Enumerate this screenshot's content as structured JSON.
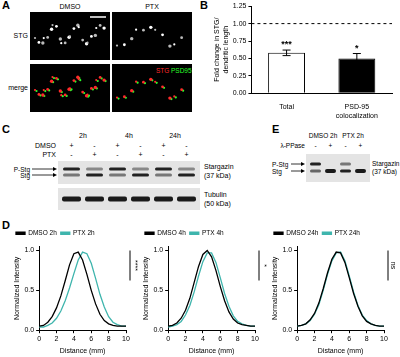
{
  "panel_labels": [
    "A",
    "B",
    "C",
    "D",
    "E"
  ],
  "panel_A": {
    "columns": [
      "DMSO",
      "PTX"
    ],
    "rows": [
      "STG",
      "merge"
    ],
    "merge_channels": [
      {
        "name": "STG",
        "color": "#ff2a2a"
      },
      {
        "name": "PSD95",
        "color": "#2aff2a"
      }
    ]
  },
  "panel_C": {
    "timepoints": [
      "2h",
      "4h",
      "24h"
    ],
    "row_labels": [
      "DMSO",
      "PTX"
    ],
    "signs": [
      [
        "+",
        "-",
        "+",
        "-",
        "+",
        "-"
      ],
      [
        "-",
        "+",
        "-",
        "+",
        "-",
        "+"
      ]
    ],
    "band_labels": [
      "P-Stg",
      "Stg"
    ],
    "blots": [
      {
        "label": [
          "Stargazin",
          "(37 kDa)"
        ]
      },
      {
        "label": [
          "Tubulin",
          "(50 kDa)"
        ]
      }
    ]
  },
  "panel_E": {
    "treatment_label": "λ-PPase",
    "groups": [
      "DMSO 2h",
      "PTX 2h"
    ],
    "signs": [
      "-",
      "+",
      "-",
      "+"
    ],
    "band_labels": [
      "P-Stg",
      "Stg"
    ],
    "blot_label": [
      "Stargazin",
      "(37 kDa)"
    ]
  },
  "chart_data": [
    {
      "type": "bar",
      "categories": [
        "Total",
        "PSD-95 colocalization"
      ],
      "values": [
        0.58,
        0.5
      ],
      "errors": [
        0.04,
        0.07
      ],
      "annotations": [
        "***",
        "*"
      ],
      "colors": [
        "#ffffff",
        "#000000"
      ],
      "y_label": [
        "Fold change in STG/",
        "dendritic length"
      ],
      "ylim": [
        0,
        1.25
      ],
      "yticks": [
        {
          "value": 0,
          "label": "0.00"
        },
        {
          "value": 0.25,
          "label": "0.25"
        },
        {
          "value": 0.5,
          "label": "0.50"
        },
        {
          "value": 0.75,
          "label": "0.75"
        },
        {
          "value": 1,
          "label": "1.00"
        },
        {
          "value": 1.25,
          "label": "1.25"
        }
      ],
      "reference_line": {
        "value": 1,
        "line_style": "dashed"
      },
      "grid": false
    },
    {
      "type": "line",
      "x": [
        0,
        0.5,
        1,
        1.5,
        2,
        2.5,
        3,
        3.5,
        4,
        4.5,
        5,
        5.5,
        6,
        6.5,
        7,
        7.5,
        8,
        8.5,
        9,
        9.5,
        10
      ],
      "series": [
        {
          "name": "DMSO 2h",
          "color": "#000000",
          "values": [
            0.05,
            0.06,
            0.1,
            0.17,
            0.28,
            0.43,
            0.62,
            0.82,
            0.96,
            0.98,
            0.88,
            0.7,
            0.5,
            0.33,
            0.2,
            0.12,
            0.08,
            0.06,
            0.05,
            0.05,
            0.05
          ]
        },
        {
          "name": "PTX 2h",
          "color": "#3fb5ad",
          "values": [
            0.04,
            0.04,
            0.06,
            0.09,
            0.15,
            0.24,
            0.37,
            0.53,
            0.71,
            0.88,
            0.98,
            0.96,
            0.84,
            0.65,
            0.45,
            0.29,
            0.17,
            0.1,
            0.07,
            0.05,
            0.05
          ]
        }
      ],
      "x_label": "Distance (mm)",
      "y_label": "Normalized Intensity",
      "xlim": [
        0,
        10
      ],
      "xticks": [
        0,
        2,
        4,
        6,
        8,
        10
      ],
      "ylim": [
        0,
        1.05
      ],
      "yticks": [
        {
          "value": 0,
          "label": "0.0"
        },
        {
          "value": 0.5,
          "label": "0.5"
        },
        {
          "value": 1,
          "label": "1.0"
        }
      ],
      "annotation": "****",
      "legend": "top",
      "grid": false
    },
    {
      "type": "line",
      "x": [
        0,
        0.5,
        1,
        1.5,
        2,
        2.5,
        3,
        3.5,
        4,
        4.5,
        5,
        5.5,
        6,
        6.5,
        7,
        7.5,
        8,
        8.5,
        9,
        9.5,
        10
      ],
      "series": [
        {
          "name": "DMSO 4h",
          "color": "#000000",
          "values": [
            0.05,
            0.06,
            0.09,
            0.15,
            0.25,
            0.4,
            0.6,
            0.8,
            0.95,
            1.0,
            0.92,
            0.75,
            0.55,
            0.37,
            0.23,
            0.14,
            0.09,
            0.07,
            0.06,
            0.05,
            0.05
          ]
        },
        {
          "name": "PTX 4h",
          "color": "#3fb5ad",
          "values": [
            0.04,
            0.05,
            0.07,
            0.11,
            0.19,
            0.31,
            0.48,
            0.68,
            0.86,
            0.97,
            0.97,
            0.85,
            0.66,
            0.46,
            0.3,
            0.18,
            0.11,
            0.08,
            0.06,
            0.05,
            0.05
          ]
        }
      ],
      "x_label": "Distance (mm)",
      "y_label": "Normalized Intensity",
      "xlim": [
        0,
        10
      ],
      "xticks": [
        0,
        2,
        4,
        6,
        8,
        10
      ],
      "ylim": [
        0,
        1.05
      ],
      "yticks": [
        {
          "value": 0,
          "label": "0.0"
        },
        {
          "value": 0.5,
          "label": "0.5"
        },
        {
          "value": 1,
          "label": "1.0"
        }
      ],
      "annotation": "*",
      "legend": "top",
      "grid": false
    },
    {
      "type": "line",
      "x": [
        0,
        0.5,
        1,
        1.5,
        2,
        2.5,
        3,
        3.5,
        4,
        4.5,
        5,
        5.5,
        6,
        6.5,
        7,
        7.5,
        8,
        8.5,
        9,
        9.5,
        10
      ],
      "series": [
        {
          "name": "DMSO 24h",
          "color": "#000000",
          "values": [
            0.05,
            0.06,
            0.08,
            0.13,
            0.21,
            0.34,
            0.52,
            0.72,
            0.89,
            0.98,
            0.97,
            0.85,
            0.66,
            0.46,
            0.3,
            0.18,
            0.11,
            0.08,
            0.06,
            0.05,
            0.05
          ]
        },
        {
          "name": "PTX 24h",
          "color": "#3fb5ad",
          "values": [
            0.05,
            0.06,
            0.08,
            0.12,
            0.2,
            0.32,
            0.5,
            0.7,
            0.87,
            0.97,
            0.98,
            0.87,
            0.68,
            0.48,
            0.31,
            0.19,
            0.12,
            0.08,
            0.06,
            0.05,
            0.05
          ]
        }
      ],
      "x_label": "Distance (mm)",
      "y_label": "Normalized Intensity",
      "xlim": [
        0,
        10
      ],
      "xticks": [
        0,
        2,
        4,
        6,
        8,
        10
      ],
      "ylim": [
        0,
        1.05
      ],
      "yticks": [
        {
          "value": 0,
          "label": "0.0"
        },
        {
          "value": 0.5,
          "label": "0.5"
        },
        {
          "value": 1,
          "label": "1.0"
        }
      ],
      "annotation": "ns",
      "legend": "top",
      "grid": false
    }
  ]
}
